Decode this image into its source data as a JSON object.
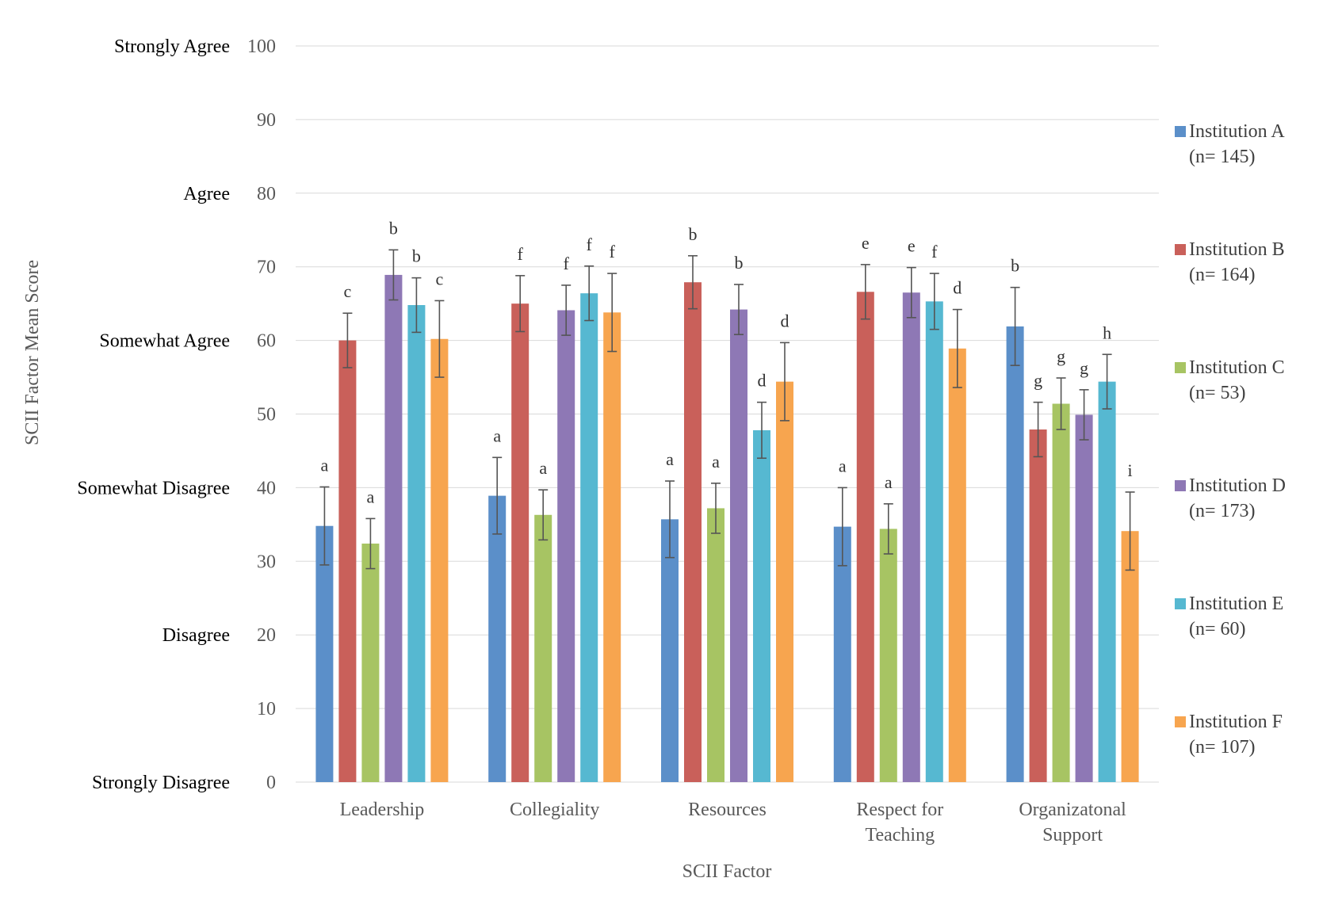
{
  "chart_data": {
    "type": "bar",
    "title": "",
    "xlabel": "SCII Factor",
    "ylabel": "SCII Factor Mean Score",
    "ylim": [
      0,
      100
    ],
    "yticks": [
      0,
      10,
      20,
      30,
      40,
      50,
      60,
      70,
      80,
      90,
      100
    ],
    "grid": true,
    "legend_position": "right",
    "likert_labels": [
      {
        "value": 100,
        "label": "Strongly Agree"
      },
      {
        "value": 80,
        "label": "Agree"
      },
      {
        "value": 60,
        "label": "Somewhat Agree"
      },
      {
        "value": 40,
        "label": "Somewhat Disagree"
      },
      {
        "value": 20,
        "label": "Disagree"
      },
      {
        "value": 0,
        "label": "Strongly Disagree"
      }
    ],
    "categories": [
      [
        "Leadership"
      ],
      [
        "Collegiality"
      ],
      [
        "Resources"
      ],
      [
        "Respect for",
        "Teaching"
      ],
      [
        "Organizatonal",
        "Support"
      ]
    ],
    "series": [
      {
        "name": "Institution A",
        "n_label": "(n= 145)",
        "color": "#5b8fc9",
        "values": [
          34.8,
          38.9,
          35.7,
          34.7,
          61.9
        ],
        "errors": [
          5.3,
          5.2,
          5.2,
          5.3,
          5.3
        ],
        "letters": [
          "a",
          "a",
          "a",
          "a",
          "b"
        ]
      },
      {
        "name": "Institution B",
        "n_label": "(n= 164)",
        "color": "#c9605a",
        "values": [
          60.0,
          65.0,
          67.9,
          66.6,
          47.9
        ],
        "errors": [
          3.7,
          3.8,
          3.6,
          3.7,
          3.7
        ],
        "letters": [
          "c",
          "f",
          "b",
          "e",
          "g"
        ]
      },
      {
        "name": "Institution C",
        "n_label": "(n= 53)",
        "color": "#a7c463",
        "values": [
          32.4,
          36.3,
          37.2,
          34.4,
          51.4
        ],
        "errors": [
          3.4,
          3.4,
          3.4,
          3.4,
          3.5
        ],
        "letters": [
          "a",
          "a",
          "a",
          "a",
          "g"
        ]
      },
      {
        "name": "Institution D",
        "n_label": "(n= 173)",
        "color": "#8e78b5",
        "values": [
          68.9,
          64.1,
          64.2,
          66.5,
          49.9
        ],
        "errors": [
          3.4,
          3.4,
          3.4,
          3.4,
          3.4
        ],
        "letters": [
          "b",
          "f",
          "b",
          "e",
          "g"
        ]
      },
      {
        "name": "Institution E",
        "n_label": "(n= 60)",
        "color": "#56b8d1",
        "values": [
          64.8,
          66.4,
          47.8,
          65.3,
          54.4
        ],
        "errors": [
          3.7,
          3.7,
          3.8,
          3.8,
          3.7
        ],
        "letters": [
          "b",
          "f",
          "d",
          "f",
          "h"
        ]
      },
      {
        "name": "Institution F",
        "n_label": "(n= 107)",
        "color": "#f7a54f",
        "values": [
          60.2,
          63.8,
          54.4,
          58.9,
          34.1
        ],
        "errors": [
          5.2,
          5.3,
          5.3,
          5.3,
          5.3
        ],
        "letters": [
          "c",
          "f",
          "d",
          "d",
          "i"
        ]
      }
    ]
  }
}
